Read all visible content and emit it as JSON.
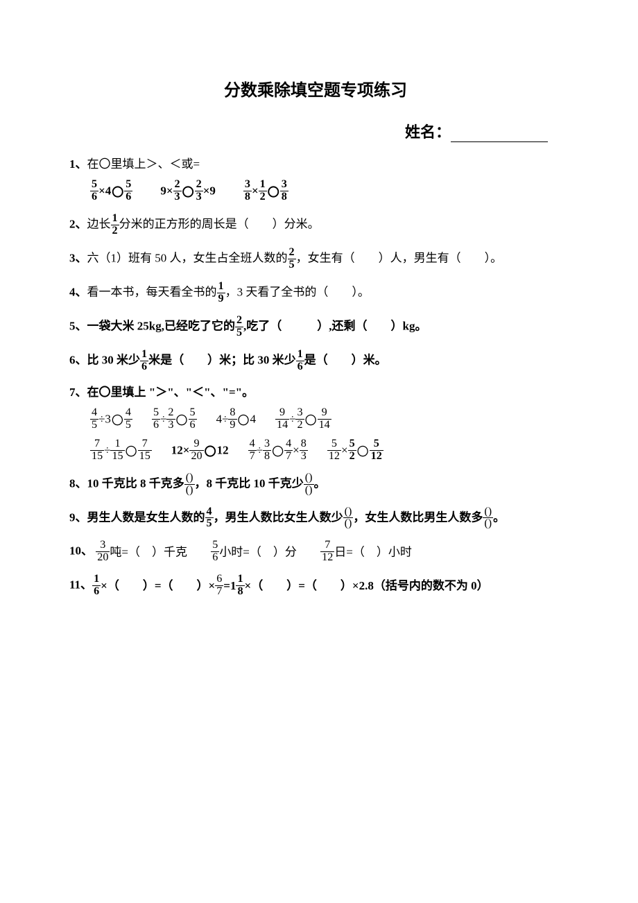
{
  "title": "分数乘除填空题专项练习",
  "name_label": "姓名：",
  "q1": {
    "prompt_num": "1、",
    "prompt": "在〇里填上＞、＜或=",
    "a_l_num": "5",
    "a_l_den": "6",
    "a_mul": "×4",
    "a_r_num": "5",
    "a_r_den": "6",
    "b_pre": "9×",
    "b_l_num": "2",
    "b_l_den": "3",
    "b_r_num": "2",
    "b_r_den": "3",
    "b_post": "×9",
    "c_l_num": "3",
    "c_l_den": "8",
    "c_m_num": "1",
    "c_m_den": "2",
    "c_r_num": "3",
    "c_r_den": "8"
  },
  "q2": {
    "prompt_num": "2、",
    "pre": "边长",
    "num": "1",
    "den": "2",
    "post": "分米的正方形的周长是（　　）分米。"
  },
  "q3": {
    "prompt_num": "3、",
    "pre": "六（1）班有 50 人，女生占全班人数的",
    "num": "2",
    "den": "5",
    "post": "，女生有（　　）人，男生有（　　）。"
  },
  "q4": {
    "prompt_num": "4、",
    "pre": "看一本书，每天看全书的",
    "num": "1",
    "den": "9",
    "post": "，3 天看了全书的（　　）。"
  },
  "q5": {
    "prompt_num": "5、",
    "pre": "一袋大米 25kg,已经吃了它的",
    "num": "2",
    "den": "5",
    "post": ",吃了（　　　）,还剩（　　）kg。"
  },
  "q6": {
    "prompt_num": "6、",
    "pre": "比 30 米少",
    "num1": "1",
    "den1": "6",
    "mid": "米是（　　）米；比 30 米少",
    "num2": "1",
    "den2": "6",
    "post": "是（　　）米。"
  },
  "q7": {
    "prompt_num": "7、",
    "prompt": "在〇里填上 \"＞\"、\"＜\"、\"=\"。",
    "r1a_l_num": "4",
    "r1a_l_den": "5",
    "r1a_mid": "÷3",
    "r1a_r_num": "4",
    "r1a_r_den": "5",
    "r1b_l_num": "5",
    "r1b_l_den": "6",
    "r1b_m_num": "2",
    "r1b_m_den": "3",
    "r1b_r_num": "5",
    "r1b_r_den": "6",
    "r1c_pre": "4÷",
    "r1c_num": "8",
    "r1c_den": "9",
    "r1c_post": "4",
    "r1d_l_num": "9",
    "r1d_l_den": "14",
    "r1d_m_num": "3",
    "r1d_m_den": "2",
    "r1d_r_num": "9",
    "r1d_r_den": "14",
    "r2a_l_num": "7",
    "r2a_l_den": "15",
    "r2a_m_num": "1",
    "r2a_m_den": "15",
    "r2a_r_num": "7",
    "r2a_r_den": "15",
    "r2b_pre": "12×",
    "r2b_num": "9",
    "r2b_den": "20",
    "r2b_post": "12",
    "r2c_l_num": "4",
    "r2c_l_den": "7",
    "r2c_m_num": "3",
    "r2c_m_den": "8",
    "r2c_m2_num": "4",
    "r2c_m2_den": "7",
    "r2c_r_num": "8",
    "r2c_r_den": "3",
    "r2d_l_num": "5",
    "r2d_l_den": "12",
    "r2d_m_num": "5",
    "r2d_m_den": "2",
    "r2d_r_num": "5",
    "r2d_r_den": "12"
  },
  "q8": {
    "prompt_num": "8、",
    "pre": "10 千克比 8 千克多",
    "num1": "()",
    "den1": "()",
    "mid": "，8 千克比 10 千克少",
    "num2": "()",
    "den2": "()",
    "post": "。"
  },
  "q9": {
    "prompt_num": "9、",
    "pre": "男生人数是女生人数的",
    "num1": "4",
    "den1": "5",
    "mid1": "，男生人数比女生人数少",
    "num2": "()",
    "den2": "()",
    "mid2": "，女生人数比男生人数多",
    "num3": "()",
    "den3": "()",
    "post": "。"
  },
  "q10": {
    "prompt_num": "10、",
    "a_num": "3",
    "a_den": "20",
    "a_post": "吨=（　）千克",
    "b_num": "5",
    "b_den": "6",
    "b_post": "小时=（　）分",
    "c_num": "7",
    "c_den": "12",
    "c_post": "日=（　）小时"
  },
  "q11": {
    "prompt_num": "11、",
    "a_num": "1",
    "a_den": "6",
    "a_post": "×（　　）=（　　）×",
    "b_num": "6",
    "b_den": "7",
    "b_post": "=1",
    "c_num": "1",
    "c_den": "8",
    "c_post": "×（　　）=（　　）×2.8（括号内的数不为 0）"
  },
  "circle": "〇"
}
